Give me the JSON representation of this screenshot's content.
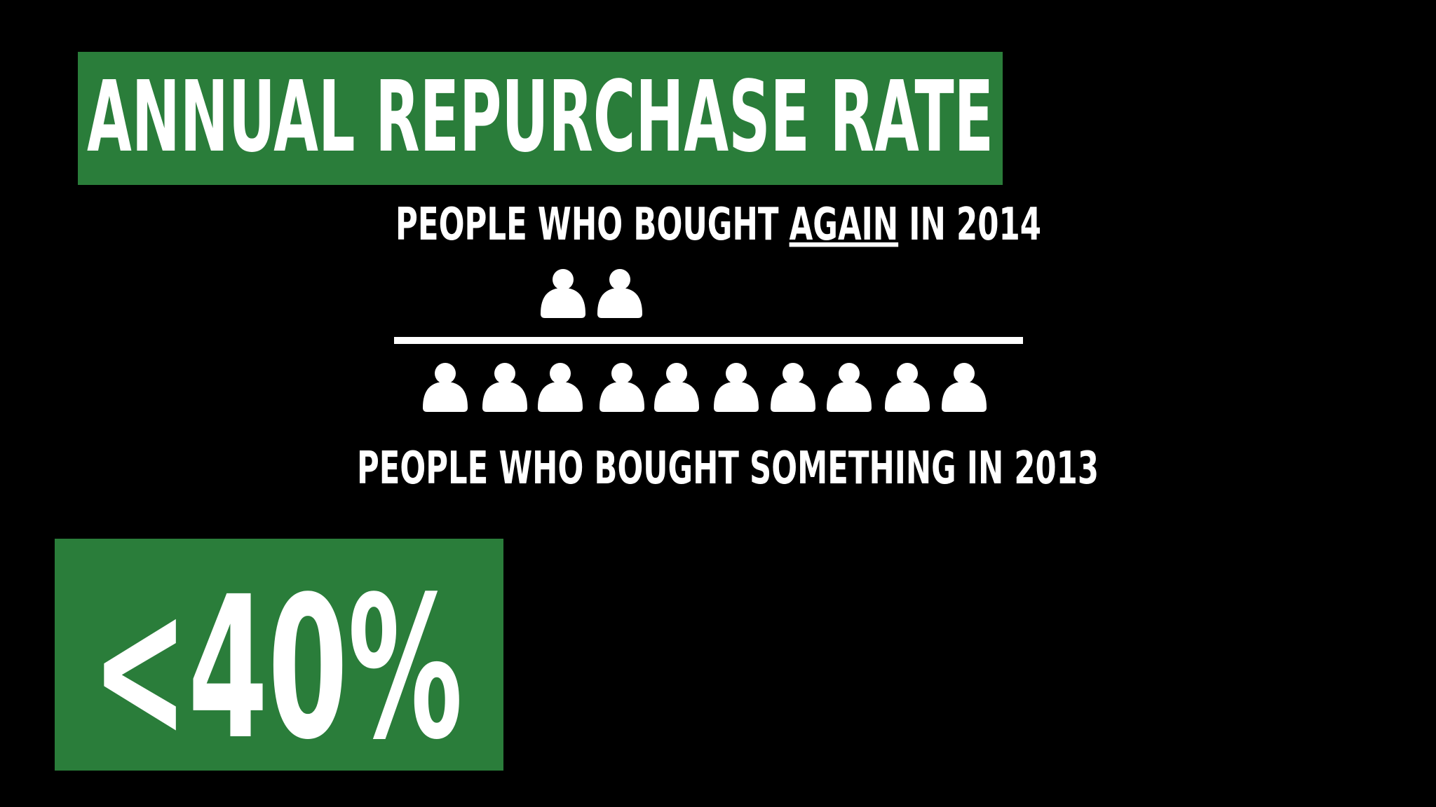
{
  "title": "ANNUAL REPURCHASE RATE",
  "numerator_label": {
    "before": "PEOPLE WHO BOUGHT ",
    "emphasis": "AGAIN",
    "after": " IN 2014"
  },
  "denominator_label": "PEOPLE WHO BOUGHT SOMETHING IN 2013",
  "result": "<40%"
}
